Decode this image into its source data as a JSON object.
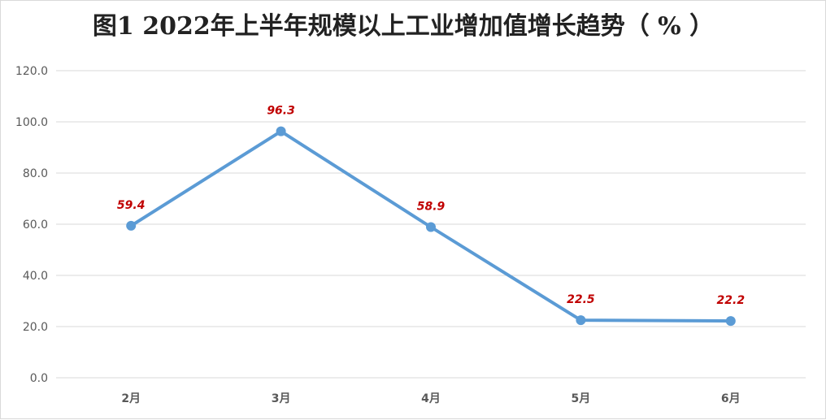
{
  "chart_data": {
    "type": "line",
    "title": "图1  2022年上半年规模以上工业增加值增长趋势（ % ）",
    "categories": [
      "2月",
      "3月",
      "4月",
      "5月",
      "6月"
    ],
    "series": [
      {
        "values": [
          59.4,
          96.3,
          58.9,
          22.5,
          22.2
        ]
      }
    ],
    "data_labels": [
      "59.4",
      "96.3",
      "58.9",
      "22.5",
      "22.2"
    ],
    "ylim": [
      0,
      120
    ],
    "yticks": [
      "0.0",
      "20.0",
      "40.0",
      "60.0",
      "80.0",
      "100.0",
      "120.0"
    ],
    "grid": true,
    "colors": {
      "line": "#5b9bd5",
      "label": "#c00000",
      "grid": "#d9d9d9"
    }
  }
}
